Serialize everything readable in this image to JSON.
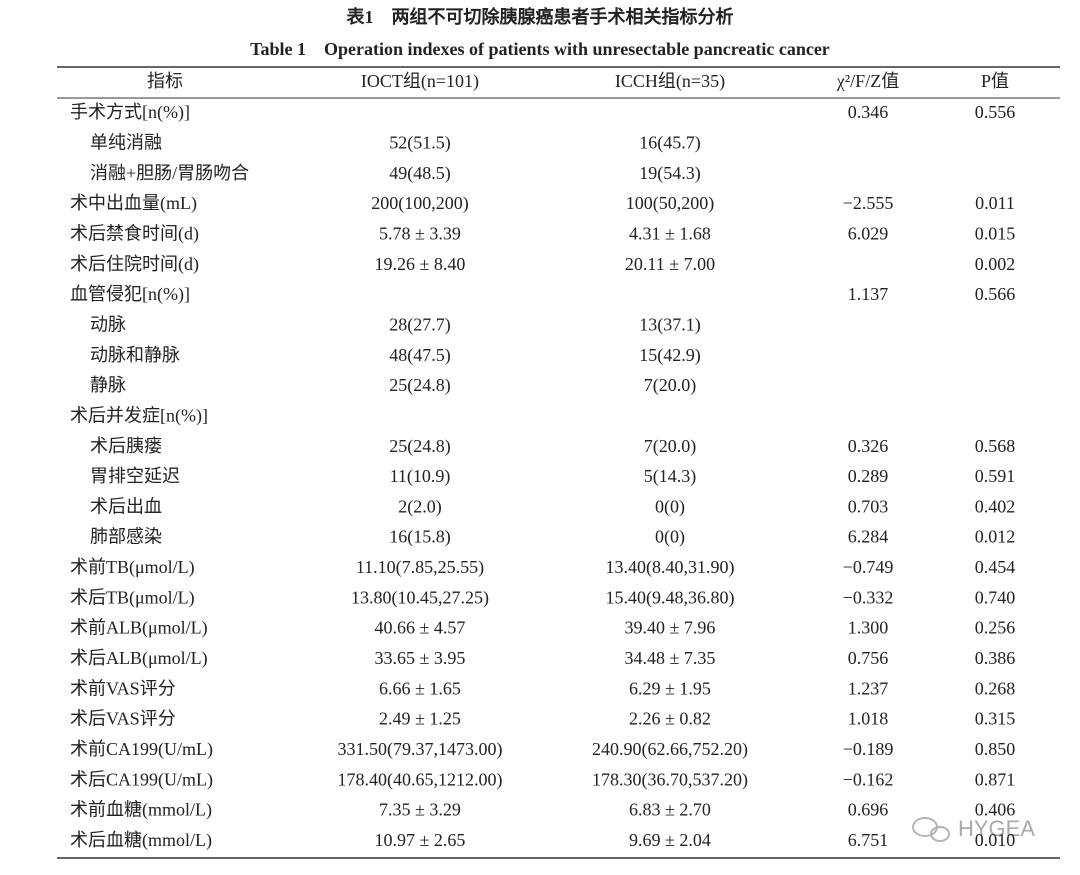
{
  "header": {
    "title_cn": "表1　两组不可切除胰腺癌患者手术相关指标分析",
    "title_en": "Table 1　Operation indexes of patients with unresectable pancreatic cancer"
  },
  "table": {
    "columns": [
      "指标",
      "IOCT组(n=101)",
      "ICCH组(n=35)",
      "χ²/F/Z值",
      "P值"
    ],
    "rows": [
      {
        "cells": [
          "手术方式[n(%)]",
          null,
          null,
          "0.346",
          "0.556"
        ],
        "subrows": [
          [
            "单纯消融",
            "52(51.5)",
            "16(45.7)",
            null,
            null
          ],
          [
            "消融+胆肠/胃肠吻合",
            "49(48.5)",
            "19(54.3)",
            null,
            null
          ]
        ]
      },
      {
        "cells": [
          "术中出血量(mL)",
          "200(100,200)",
          "100(50,200)",
          "−2.555",
          "0.011"
        ]
      },
      {
        "cells": [
          "术后禁食时间(d)",
          "5.78 ± 3.39",
          "4.31 ± 1.68",
          "6.029",
          "0.015"
        ]
      },
      {
        "cells": [
          "术后住院时间(d)",
          "19.26 ± 8.40",
          "20.11 ± 7.00",
          null,
          "0.002"
        ]
      },
      {
        "cells": [
          "血管侵犯[n(%)]",
          null,
          null,
          "1.137",
          "0.566"
        ],
        "subrows": [
          [
            "动脉",
            "28(27.7)",
            "13(37.1)",
            null,
            null
          ],
          [
            "动脉和静脉",
            "48(47.5)",
            "15(42.9)",
            null,
            null
          ],
          [
            "静脉",
            "25(24.8)",
            "7(20.0)",
            null,
            null
          ]
        ]
      },
      {
        "cells": [
          "术后并发症[n(%)]",
          null,
          null,
          null,
          null
        ],
        "subrows": [
          [
            "术后胰瘘",
            "25(24.8)",
            "7(20.0)",
            "0.326",
            "0.568"
          ],
          [
            "胃排空延迟",
            "11(10.9)",
            "5(14.3)",
            "0.289",
            "0.591"
          ],
          [
            "术后出血",
            "2(2.0)",
            "0(0)",
            "0.703",
            "0.402"
          ],
          [
            "肺部感染",
            "16(15.8)",
            "0(0)",
            "6.284",
            "0.012"
          ]
        ]
      },
      {
        "cells": [
          "术前TB(μmol/L)",
          "11.10(7.85,25.55)",
          "13.40(8.40,31.90)",
          "−0.749",
          "0.454"
        ]
      },
      {
        "cells": [
          "术后TB(μmol/L)",
          "13.80(10.45,27.25)",
          "15.40(9.48,36.80)",
          "−0.332",
          "0.740"
        ]
      },
      {
        "cells": [
          "术前ALB(μmol/L)",
          "40.66 ± 4.57",
          "39.40 ± 7.96",
          "1.300",
          "0.256"
        ]
      },
      {
        "cells": [
          "术后ALB(μmol/L)",
          "33.65 ± 3.95",
          "34.48 ± 7.35",
          "0.756",
          "0.386"
        ]
      },
      {
        "cells": [
          "术前VAS评分",
          "6.66 ± 1.65",
          "6.29 ± 1.95",
          "1.237",
          "0.268"
        ]
      },
      {
        "cells": [
          "术后VAS评分",
          "2.49 ± 1.25",
          "2.26 ± 0.82",
          "1.018",
          "0.315"
        ]
      },
      {
        "cells": [
          "术前CA199(U/mL)",
          "331.50(79.37,1473.00)",
          "240.90(62.66,752.20)",
          "−0.189",
          "0.850"
        ]
      },
      {
        "cells": [
          "术后CA199(U/mL)",
          "178.40(40.65,1212.00)",
          "178.30(36.70,537.20)",
          "−0.162",
          "0.871"
        ]
      },
      {
        "cells": [
          "术前血糖(mmol/L)",
          "7.35 ± 3.29",
          "6.83 ± 2.70",
          "0.696",
          "0.406"
        ]
      },
      {
        "cells": [
          "术后血糖(mmol/L)",
          "10.97 ± 2.65",
          "9.69 ± 2.04",
          "6.751",
          "0.010"
        ]
      }
    ]
  },
  "watermark": "HYGEA"
}
